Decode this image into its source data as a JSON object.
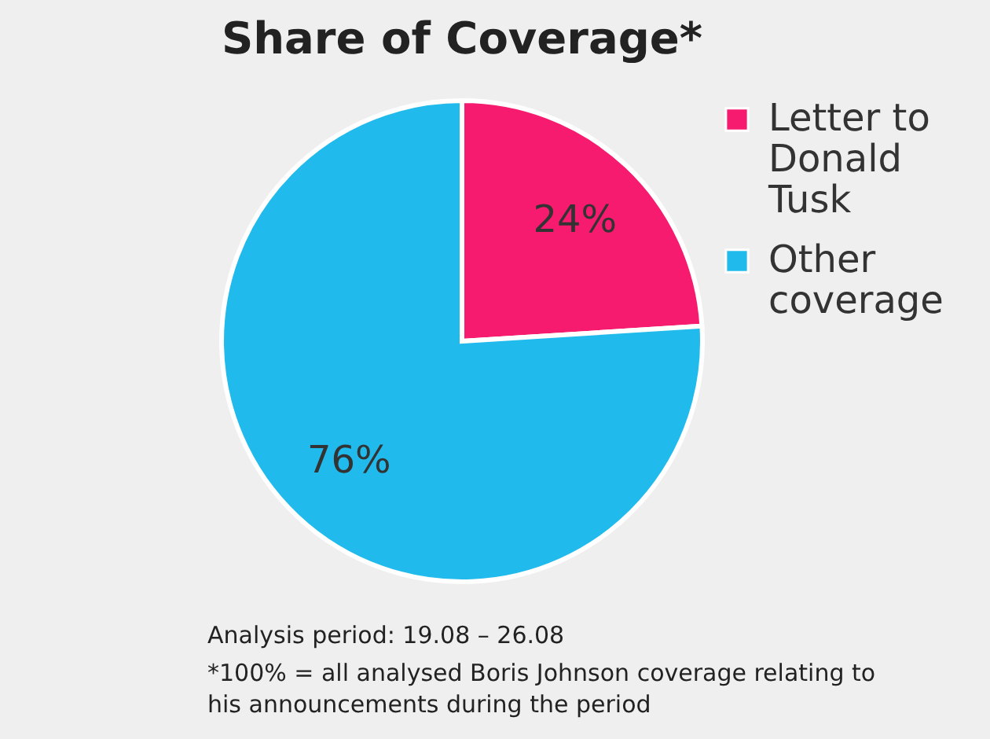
{
  "chart_data": {
    "type": "pie",
    "title": "Share of Coverage*",
    "categories": [
      "Letter to Donald Tusk",
      "Other coverage"
    ],
    "values": [
      24,
      76
    ],
    "colors": [
      "#f71b6f",
      "#20bbec"
    ],
    "value_labels": [
      "24%",
      "76%"
    ],
    "legend": "right",
    "annotations": [
      "Analysis period: 19.08 – 26.08",
      "*100% = all analysed Boris Johnson coverage relating to his announcements during the period"
    ]
  }
}
